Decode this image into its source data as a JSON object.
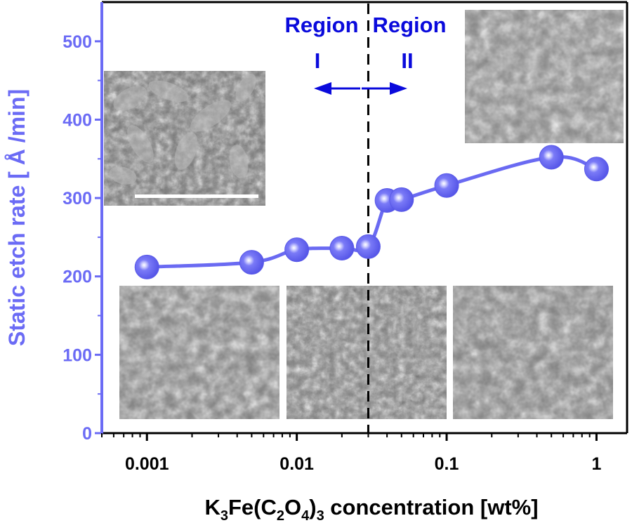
{
  "chart_data": {
    "type": "scatter",
    "x_scale": "log",
    "xlabel_parts": [
      "K",
      "3",
      "Fe(C",
      "2",
      "O",
      "4",
      ")",
      "3",
      " concentration [wt%]"
    ],
    "ylabel": "Static etch rate [ Å /min]",
    "xlim": [
      0.0005,
      1.6
    ],
    "ylim": [
      0,
      550
    ],
    "x_ticks": [
      0.001,
      0.01,
      0.1,
      1
    ],
    "x_tick_labels": [
      "0.001",
      "0.01",
      "0.1",
      "1"
    ],
    "y_ticks": [
      0,
      100,
      200,
      300,
      400,
      500
    ],
    "y_tick_labels": [
      "0",
      "100",
      "200",
      "300",
      "400",
      "500"
    ],
    "series": [
      {
        "x": [
          0.001,
          0.005,
          0.01,
          0.02,
          0.03,
          0.04,
          0.05,
          0.1,
          0.5,
          1
        ],
        "y": [
          212,
          218,
          234,
          236,
          238,
          297,
          298,
          316,
          352,
          337
        ]
      }
    ],
    "divider_x": 0.03,
    "annotations": {
      "region1_word": "Region",
      "region1_numeral": "I",
      "region2_word": "Region",
      "region2_numeral": "II"
    },
    "colors": {
      "marker": "#6a6af2",
      "axis_y": "#6b6bf5",
      "region_text": "#0a0adc",
      "axis_x": "#000000"
    }
  }
}
